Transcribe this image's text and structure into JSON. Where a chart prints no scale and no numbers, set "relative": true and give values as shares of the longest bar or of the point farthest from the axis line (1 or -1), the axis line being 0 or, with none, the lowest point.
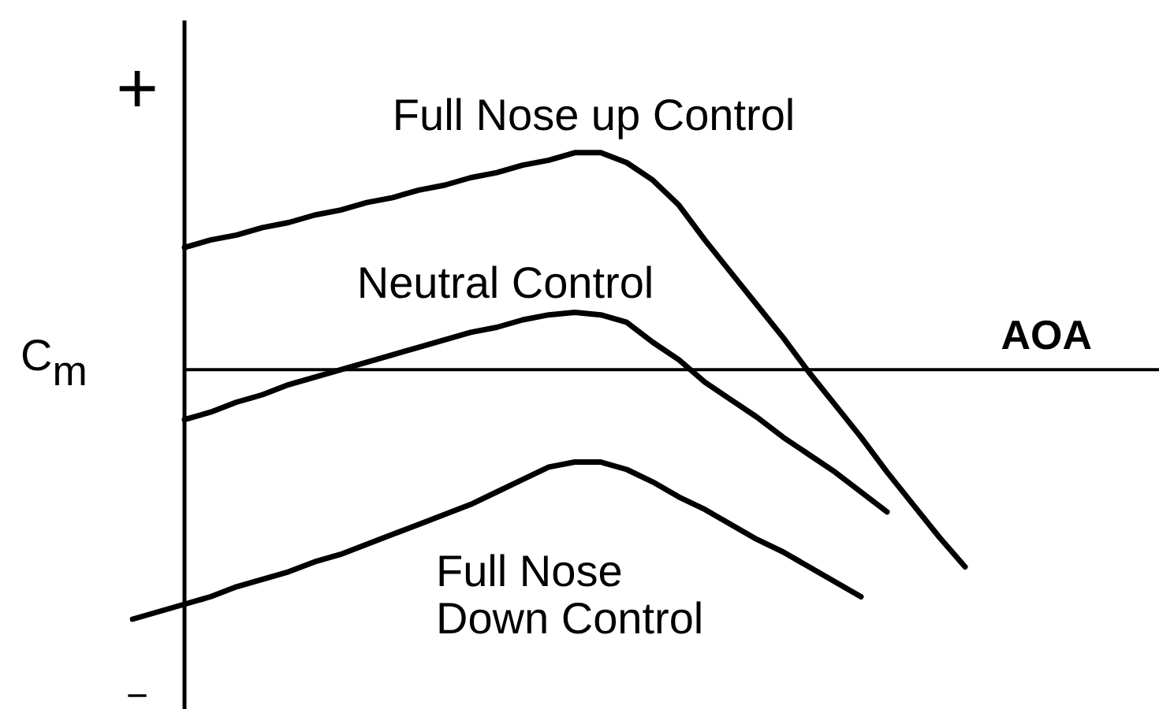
{
  "chart_data": {
    "type": "line",
    "relative": true,
    "xlabel": "AOA",
    "ylabel": "C$_{m}$",
    "annotations": [
      "+",
      "−"
    ],
    "categories": [
      null,
      null,
      null,
      null,
      null,
      null,
      null,
      null,
      null,
      null,
      null,
      null,
      null,
      null,
      null,
      null,
      null,
      null,
      null,
      null,
      null,
      null,
      null,
      null,
      null,
      null,
      null,
      null,
      null,
      null,
      null,
      null,
      null,
      null,
      null,
      null,
      null,
      null,
      null,
      null
    ],
    "series": [
      {
        "name": "Full Nose up Control",
        "color": "#000000",
        "values": [
          null,
          null,
          0.49,
          0.52,
          0.54,
          0.57,
          0.59,
          0.62,
          0.64,
          0.67,
          0.69,
          0.72,
          0.74,
          0.77,
          0.79,
          0.82,
          0.84,
          0.87,
          0.87,
          0.83,
          0.76,
          0.66,
          0.52,
          0.39,
          0.26,
          0.13,
          -0.01,
          -0.14,
          -0.27,
          -0.41,
          -0.54,
          -0.67,
          -0.79,
          null,
          null,
          null,
          null,
          null,
          null,
          null
        ]
      },
      {
        "name": "Neutral Control",
        "color": "#000000",
        "values": [
          null,
          null,
          -0.2,
          -0.17,
          -0.13,
          -0.1,
          -0.06,
          -0.03,
          0.0,
          0.03,
          0.06,
          0.09,
          0.12,
          0.15,
          0.17,
          0.2,
          0.22,
          0.23,
          0.22,
          0.19,
          0.11,
          0.04,
          -0.05,
          -0.12,
          -0.19,
          -0.27,
          -0.34,
          -0.41,
          -0.49,
          -0.57,
          null,
          null,
          null,
          null,
          null,
          null,
          null,
          null,
          null,
          null
        ]
      },
      {
        "name": "Full Nose Down Control",
        "color": "#000000",
        "values": [
          -1,
          -0.97,
          -0.94,
          -0.91,
          -0.87,
          -0.84,
          -0.81,
          -0.77,
          -0.74,
          -0.7,
          -0.66,
          -0.62,
          -0.58,
          -0.54,
          -0.49,
          -0.44,
          -0.39,
          -0.37,
          -0.37,
          -0.4,
          -0.45,
          -0.51,
          -0.56,
          -0.62,
          -0.68,
          -0.73,
          -0.79,
          -0.85,
          -0.91,
          null,
          null,
          null,
          null,
          null,
          null,
          null,
          null,
          null,
          null,
          null
        ]
      }
    ]
  }
}
